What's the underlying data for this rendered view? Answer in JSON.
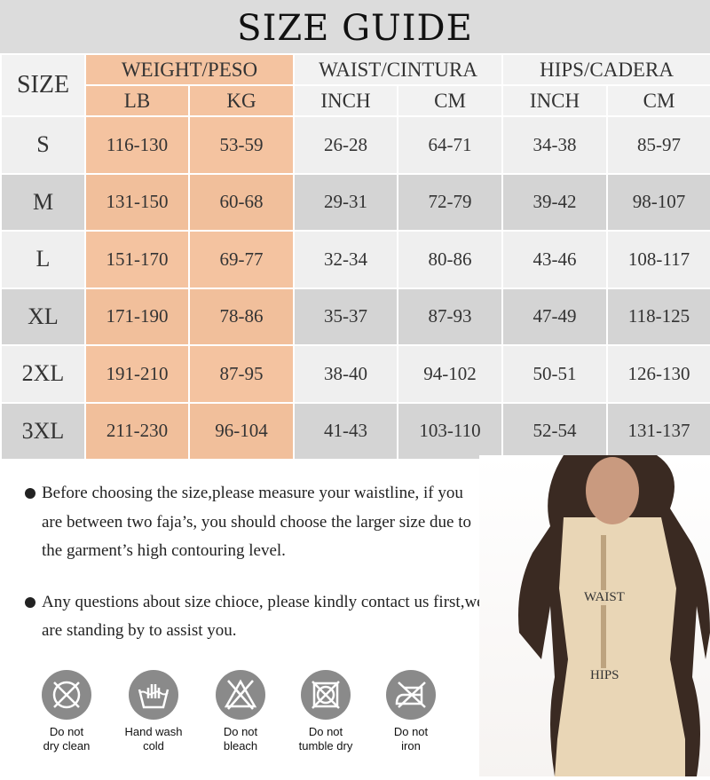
{
  "title": "SIZE GUIDE",
  "headers": {
    "size": "SIZE",
    "weight": "WEIGHT/PESO",
    "waist": "WAIST/CINTURA",
    "hips": "HIPS/CADERA",
    "lb": "LB",
    "kg": "KG",
    "waist_inch": "INCH",
    "waist_cm": "CM",
    "hips_inch": "INCH",
    "hips_cm": "CM"
  },
  "rows": [
    {
      "size": "S",
      "lb": "116-130",
      "kg": "53-59",
      "waist_inch": "26-28",
      "waist_cm": "64-71",
      "hips_inch": "34-38",
      "hips_cm": "85-97"
    },
    {
      "size": "M",
      "lb": "131-150",
      "kg": "60-68",
      "waist_inch": "29-31",
      "waist_cm": "72-79",
      "hips_inch": "39-42",
      "hips_cm": "98-107"
    },
    {
      "size": "L",
      "lb": "151-170",
      "kg": "69-77",
      "waist_inch": "32-34",
      "waist_cm": "80-86",
      "hips_inch": "43-46",
      "hips_cm": "108-117"
    },
    {
      "size": "XL",
      "lb": "171-190",
      "kg": "78-86",
      "waist_inch": "35-37",
      "waist_cm": "87-93",
      "hips_inch": "47-49",
      "hips_cm": "118-125"
    },
    {
      "size": "2XL",
      "lb": "191-210",
      "kg": "87-95",
      "waist_inch": "38-40",
      "waist_cm": "94-102",
      "hips_inch": "50-51",
      "hips_cm": "126-130"
    },
    {
      "size": "3XL",
      "lb": "211-230",
      "kg": "96-104",
      "waist_inch": "41-43",
      "waist_cm": "103-110",
      "hips_inch": "52-54",
      "hips_cm": "131-137"
    }
  ],
  "notes": [
    "Before choosing the size,please measure your waistline, if you are between two faja’s, you should choose the larger size due to the garment’s high contouring level.",
    "Any questions about size chioce, please kindly contact us first,we are standing by to assist you."
  ],
  "care": [
    {
      "icon": "no-dry-clean-icon",
      "line1": "Do not",
      "line2": "dry clean"
    },
    {
      "icon": "hand-wash-icon",
      "line1": "Hand wash",
      "line2": "cold"
    },
    {
      "icon": "no-bleach-icon",
      "line1": "Do not",
      "line2": "bleach"
    },
    {
      "icon": "no-tumble-dry-icon",
      "line1": "Do not",
      "line2": "tumble dry"
    },
    {
      "icon": "no-iron-icon",
      "line1": "Do not",
      "line2": "iron"
    }
  ],
  "model_labels": {
    "waist": "WAIST",
    "hips": "HIPS"
  },
  "colors": {
    "peach": "#f4c3a0",
    "header_gray": "#dcdcdc",
    "row_dark": "#d4d4d4",
    "row_light": "#efefef",
    "icon_gray": "#8a8a8a"
  }
}
